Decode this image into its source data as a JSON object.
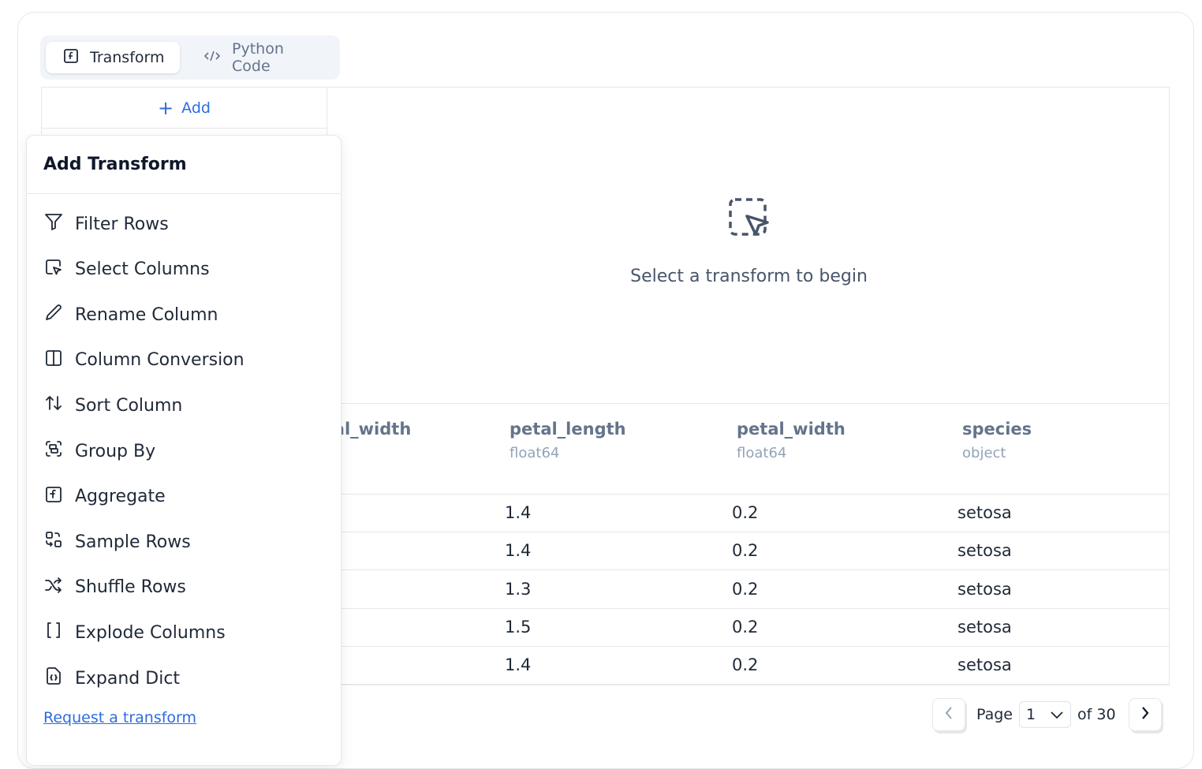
{
  "tabs": [
    {
      "label": "Transform",
      "icon": "function-square-icon",
      "active": true
    },
    {
      "label": "Python Code",
      "icon": "code-icon",
      "active": false
    }
  ],
  "add_button": {
    "label": "Add"
  },
  "empty_state": {
    "icon": "dashed-select-pointer-icon",
    "text": "Select a transform to begin"
  },
  "table": {
    "columns": [
      {
        "name": "sepal_width",
        "type": ""
      },
      {
        "name": "petal_length",
        "type": "float64"
      },
      {
        "name": "petal_width",
        "type": "float64"
      },
      {
        "name": "species",
        "type": "object"
      }
    ],
    "rows": [
      [
        "1.4",
        "0.2",
        "setosa"
      ],
      [
        "1.4",
        "0.2",
        "setosa"
      ],
      [
        "1.3",
        "0.2",
        "setosa"
      ],
      [
        "1.5",
        "0.2",
        "setosa"
      ],
      [
        "1.4",
        "0.2",
        "setosa"
      ]
    ]
  },
  "popup": {
    "title": "Add Transform",
    "items": [
      {
        "label": "Filter Rows",
        "icon": "filter-icon"
      },
      {
        "label": "Select Columns",
        "icon": "select-pointer-icon"
      },
      {
        "label": "Rename Column",
        "icon": "pencil-icon"
      },
      {
        "label": "Column Conversion",
        "icon": "columns-icon"
      },
      {
        "label": "Sort Column",
        "icon": "sort-arrows-icon"
      },
      {
        "label": "Group By",
        "icon": "group-icon"
      },
      {
        "label": "Aggregate",
        "icon": "function-square-icon"
      },
      {
        "label": "Sample Rows",
        "icon": "sample-icon"
      },
      {
        "label": "Shuffle Rows",
        "icon": "shuffle-icon"
      },
      {
        "label": "Explode Columns",
        "icon": "brackets-icon"
      },
      {
        "label": "Expand Dict",
        "icon": "file-braces-icon"
      }
    ],
    "request_link": "Request a transform"
  },
  "pagination": {
    "page_label": "Page",
    "current_page": "1",
    "of_label": "of 30"
  }
}
